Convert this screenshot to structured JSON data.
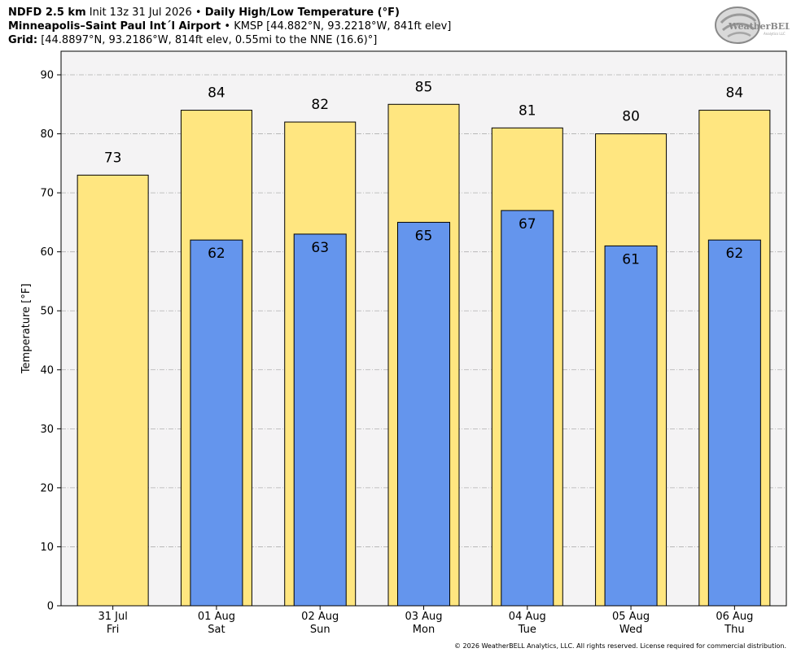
{
  "header": {
    "line1": {
      "product": "NDFD 2.5 km",
      "init": "Init 13z 31 Jul 2026",
      "sep": "•",
      "title": "Daily High/Low Temperature (°F)"
    },
    "line2": {
      "location": "Minneapolis–Saint Paul Int´l Airport",
      "sep": "•",
      "station": "KMSP [44.882°N, 93.2218°W, 841ft elev]"
    },
    "line3": {
      "label": "Grid:",
      "text": "[44.8897°N, 93.2186°W, 814ft elev, 0.55mi to the NNE (16.6)°]"
    }
  },
  "logo": {
    "text": "WeatherBELL",
    "sub": "Analytics LLC"
  },
  "footer": "© 2026 WeatherBELL Analytics, LLC. All rights reserved. License required for commercial distribution.",
  "chart_data": {
    "type": "bar",
    "categories": [
      "31 Jul",
      "01 Aug",
      "02 Aug",
      "03 Aug",
      "04 Aug",
      "05 Aug",
      "06 Aug"
    ],
    "weekdays": [
      "Fri",
      "Sat",
      "Sun",
      "Mon",
      "Tue",
      "Wed",
      "Thu"
    ],
    "series": [
      {
        "values": [
          73,
          84,
          82,
          85,
          81,
          80,
          84
        ],
        "color": "#FFE680"
      },
      {
        "values": [
          null,
          62,
          63,
          65,
          67,
          61,
          62
        ],
        "color": "#6495ED"
      }
    ],
    "ylabel": "Temperature [°F]",
    "ylim": [
      0,
      94
    ],
    "yticks": [
      0,
      10,
      20,
      30,
      40,
      50,
      60,
      70,
      80,
      90
    ],
    "grid": true,
    "background": "#F4F3F4"
  }
}
